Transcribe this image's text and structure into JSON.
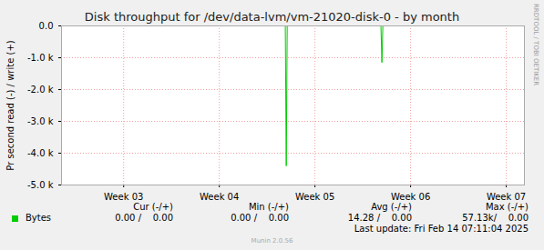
{
  "chart_data": {
    "type": "line",
    "title": "Disk throughput for /dev/data-lvm/vm-21020-disk-0 - by month",
    "y_label": "Pr second read (-) / write (+)",
    "x": [
      2.35,
      4.69,
      4.7,
      4.71,
      5.69,
      5.7,
      5.71,
      7.19
    ],
    "series": [
      {
        "name": "Bytes",
        "color": "#00cc00",
        "values": [
          0,
          0,
          -4400,
          0,
          0,
          -1150,
          0,
          0
        ]
      }
    ],
    "xlim": [
      2.35,
      7.19
    ],
    "xticks": [
      {
        "value": 3,
        "label": "Week 03"
      },
      {
        "value": 4,
        "label": "Week 04"
      },
      {
        "value": 5,
        "label": "Week 05"
      },
      {
        "value": 6,
        "label": "Week 06"
      },
      {
        "value": 7,
        "label": "Week 07"
      }
    ],
    "ylim": [
      -5000,
      0
    ],
    "yticks": [
      {
        "value": -5000,
        "label": "-5.0 k"
      },
      {
        "value": -4000,
        "label": "-4.0 k"
      },
      {
        "value": -3000,
        "label": "-3.0 k"
      },
      {
        "value": -2000,
        "label": "-2.0 k"
      },
      {
        "value": -1000,
        "label": "-1.0 k"
      },
      {
        "value": 0,
        "label": "0.0"
      }
    ],
    "grid": true,
    "summary": {
      "headers": [
        "Cur (-/+)",
        "Min (-/+)",
        "Avg (-/+)",
        "Max (-/+)"
      ],
      "rows": [
        {
          "name": "Bytes",
          "cells": [
            "0.00 /    0.00",
            "0.00 /    0.00",
            "14.28 /    0.00",
            "57.13k/    0.00"
          ]
        }
      ]
    },
    "last_update": "Last update: Fri Feb 14 07:11:04 2025",
    "footer": "Munin 2.0.56",
    "watermark": "RRDTOOL / TOBI OETIKER"
  }
}
